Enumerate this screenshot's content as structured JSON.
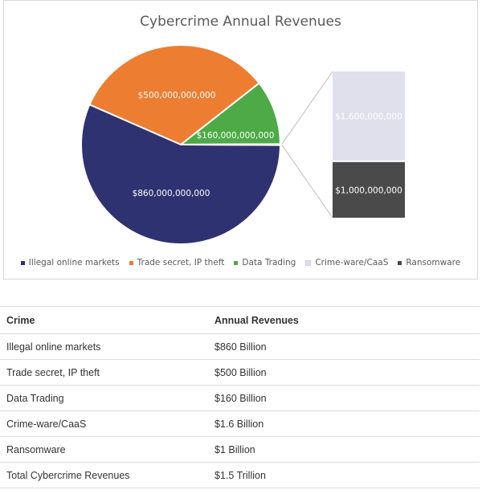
{
  "chart_data": {
    "type": "pie",
    "title": "Cybercrime Annual Revenues",
    "slices": [
      {
        "name": "Illegal online markets",
        "value": 860000000000,
        "label": "$860,000,000,000",
        "color": "#2e3270"
      },
      {
        "name": "Trade secret, IP theft",
        "value": 500000000000,
        "label": "$500,000,000,000",
        "color": "#ed7d31"
      },
      {
        "name": "Data Trading",
        "value": 160000000000,
        "label": "$160,000,000,000",
        "color": "#4daa47"
      },
      {
        "name": "Crime-ware/CaaS",
        "value": 1600000000,
        "label": "$1,600,000,000",
        "color": "#dfe0ec"
      },
      {
        "name": "Ransomware",
        "value": 1000000000,
        "label": "$1,000,000,000",
        "color": "#4a4a4a"
      }
    ],
    "secondary_chart": {
      "type": "stacked-bar",
      "slices": [
        "Crime-ware/CaaS",
        "Ransomware"
      ]
    },
    "legend_position": "bottom"
  },
  "table": {
    "headers": [
      "Crime",
      "Annual Revenues"
    ],
    "rows": [
      [
        "Illegal online markets",
        "$860 Billion"
      ],
      [
        "Trade secret, IP theft",
        "$500 Billion"
      ],
      [
        "Data Trading",
        "$160 Billion"
      ],
      [
        "Crime-ware/CaaS",
        "$1.6 Billion"
      ],
      [
        "Ransomware",
        "$1 Billion"
      ],
      [
        "Total Cybercrime Revenues",
        "$1.5 Trillion"
      ]
    ]
  }
}
